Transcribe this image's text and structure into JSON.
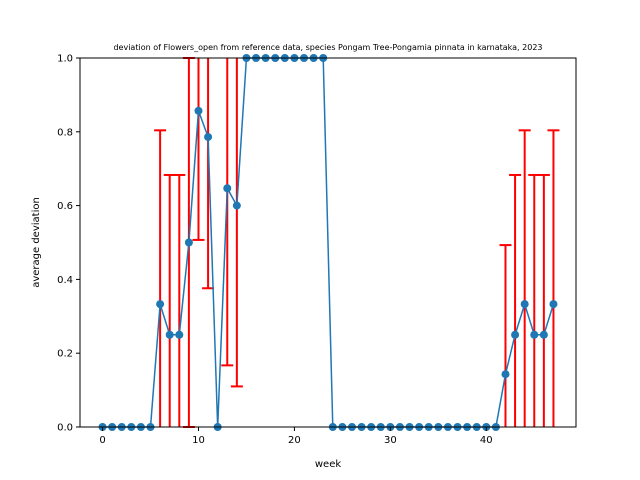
{
  "chart_data": {
    "type": "line",
    "title": "deviation of Flowers_open from reference data, species Pongam Tree-Pongamia pinnata in karnataka, 2023",
    "xlabel": "week",
    "ylabel": "average deviation",
    "xlim": [
      -2.35,
      49.35
    ],
    "ylim": [
      0,
      1
    ],
    "xticks": [
      0,
      10,
      20,
      30,
      40
    ],
    "yticks": [
      0.0,
      0.2,
      0.4,
      0.6,
      0.8,
      1.0
    ],
    "xtick_labels": [
      "0",
      "10",
      "20",
      "30",
      "40"
    ],
    "ytick_labels": [
      "0.0",
      "0.2",
      "0.4",
      "0.6",
      "0.8",
      "1.0"
    ],
    "grid": false,
    "legend": "none",
    "series": [
      {
        "color": "#1f77b4",
        "marker": "circle",
        "x": [
          0,
          1,
          2,
          3,
          4,
          5,
          6,
          7,
          8,
          9,
          10,
          11,
          12,
          13,
          14,
          15,
          16,
          17,
          18,
          19,
          20,
          21,
          22,
          23,
          24,
          25,
          26,
          27,
          28,
          29,
          30,
          31,
          32,
          33,
          34,
          35,
          36,
          37,
          38,
          39,
          40,
          41,
          42,
          43,
          44,
          45,
          46,
          47
        ],
        "y": [
          0,
          0,
          0,
          0,
          0,
          0,
          0.333,
          0.25,
          0.25,
          0.5,
          0.857,
          0.786,
          0,
          0.647,
          0.6,
          1,
          1,
          1,
          1,
          1,
          1,
          1,
          1,
          1,
          0,
          0,
          0,
          0,
          0,
          0,
          0,
          0,
          0,
          0,
          0,
          0,
          0,
          0,
          0,
          0,
          0,
          0,
          0.143,
          0.25,
          0.333,
          0.25,
          0.25,
          0.333
        ],
        "yerr": [
          0,
          0,
          0,
          0,
          0,
          0,
          0.471,
          0.433,
          0.433,
          0.5,
          0.35,
          0.41,
          0,
          0.48,
          0.49,
          0,
          0,
          0,
          0,
          0,
          0,
          0,
          0,
          0,
          0,
          0,
          0,
          0,
          0,
          0,
          0,
          0,
          0,
          0,
          0,
          0,
          0,
          0,
          0,
          0,
          0,
          0,
          0.35,
          0.433,
          0.471,
          0.433,
          0.433,
          0.471
        ]
      }
    ],
    "errorbar_color": "#ff0000"
  }
}
